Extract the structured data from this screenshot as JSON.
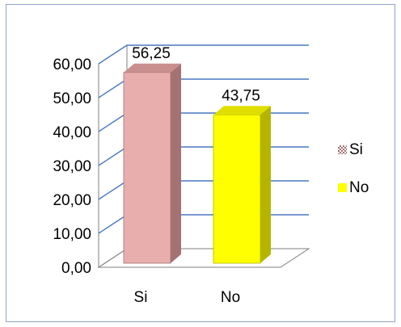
{
  "chart_data": {
    "type": "bar",
    "categories": [
      "Si",
      "No"
    ],
    "values": [
      56.25,
      43.75
    ],
    "data_labels": [
      "56,25",
      "43,75"
    ],
    "y_ticks": [
      "0,00",
      "10,00",
      "20,00",
      "30,00",
      "40,00",
      "50,00",
      "60,00"
    ],
    "ylim": [
      0,
      60
    ],
    "grid": true,
    "legend": {
      "position": "right",
      "entries": [
        {
          "label": "Si",
          "color": "#e8aeae",
          "pattern": "checker"
        },
        {
          "label": "No",
          "color": "#ffff00"
        }
      ]
    },
    "colors": {
      "si_front": "#e8aeae",
      "si_side": "#a47272",
      "si_top": "#c98e8e",
      "no_front": "#ffff00",
      "no_side": "#b5b500",
      "no_top": "#dede00",
      "grid": "#4a76c2",
      "walls": "#7f7f7f"
    }
  }
}
